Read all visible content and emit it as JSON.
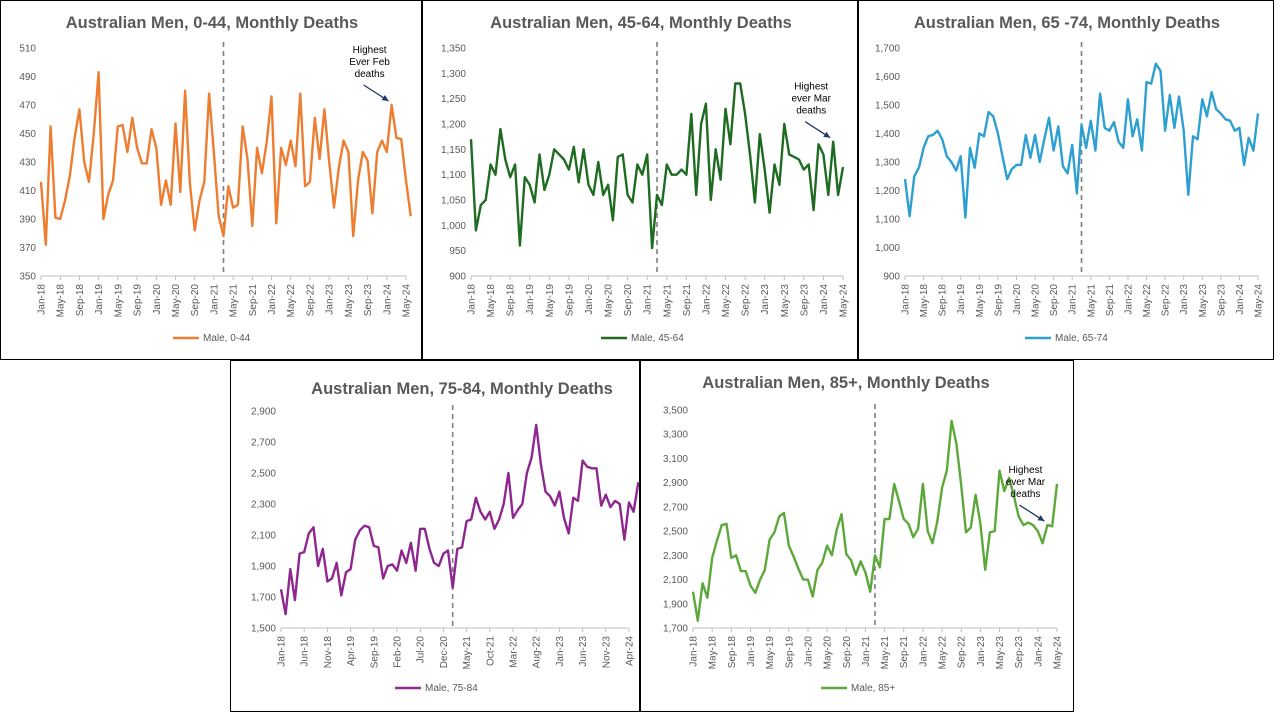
{
  "chart_data": [
    {
      "type": "line",
      "title": "Australian Men, 0-44, Monthly Deaths",
      "ylim": [
        350,
        510
      ],
      "yticks": [
        350,
        370,
        390,
        410,
        430,
        450,
        470,
        490,
        510
      ],
      "ytick_labels": [
        "350",
        "370",
        "390",
        "410",
        "430",
        "450",
        "470",
        "490",
        "510"
      ],
      "xtick_labels": [
        "Jan-18",
        "May-18",
        "Sep-18",
        "Jan-19",
        "May-19",
        "Sep-19",
        "Jan-20",
        "May-20",
        "Sep-20",
        "Jan-21",
        "May-21",
        "Sep-21",
        "Jan-22",
        "May-22",
        "Sep-22",
        "Jan-23",
        "May-23",
        "Sep-23",
        "Jan-24",
        "May-24"
      ],
      "x_start": "Jan-18",
      "x_end": "May-24",
      "divider_at": "Mar-21",
      "grid": false,
      "legend": "bottom",
      "series": [
        {
          "name": "Male, 0-44",
          "color": "#ED7D31",
          "values": [
            416,
            372,
            455,
            391,
            390,
            403,
            420,
            447,
            467,
            430,
            416,
            450,
            493,
            390,
            407,
            417,
            455,
            456,
            437,
            461,
            440,
            429,
            429,
            453,
            440,
            400,
            417,
            400,
            457,
            409,
            480,
            415,
            382,
            403,
            416,
            478,
            436,
            392,
            378,
            413,
            398,
            400,
            455,
            432,
            385,
            440,
            422,
            444,
            476,
            387,
            440,
            428,
            445,
            427,
            478,
            413,
            416,
            461,
            432,
            467,
            430,
            398,
            426,
            445,
            437,
            378,
            417,
            437,
            431,
            394,
            437,
            445,
            437,
            470,
            447,
            446,
            417,
            392
          ]
        }
      ],
      "annotations": [
        {
          "lines": [
            "Highest",
            "Ever Feb",
            "deaths"
          ],
          "at": "Feb-24"
        }
      ]
    },
    {
      "type": "line",
      "title": "Australian Men, 45-64, Monthly Deaths",
      "ylim": [
        900,
        1350
      ],
      "yticks": [
        900,
        950,
        1000,
        1050,
        1100,
        1150,
        1200,
        1250,
        1300,
        1350
      ],
      "ytick_labels": [
        "900",
        "950",
        "1,000",
        "1,050",
        "1,100",
        "1,150",
        "1,200",
        "1,250",
        "1,300",
        "1,350"
      ],
      "xtick_labels": [
        "Jan-18",
        "May-18",
        "Sep-18",
        "Jan-19",
        "May-19",
        "Sep-19",
        "Jan-20",
        "May-20",
        "Sep-20",
        "Jan-21",
        "May-21",
        "Sep-21",
        "Jan-22",
        "May-22",
        "Sep-22",
        "Jan-23",
        "May-23",
        "Sep-23",
        "Jan-24",
        "May-24"
      ],
      "x_start": "Jan-18",
      "x_end": "May-24",
      "divider_at": "Mar-21",
      "grid": false,
      "legend": "bottom",
      "series": [
        {
          "name": "Male, 45-64",
          "color": "#1E6B21",
          "values": [
            1170,
            990,
            1040,
            1050,
            1120,
            1100,
            1190,
            1130,
            1095,
            1120,
            960,
            1095,
            1080,
            1045,
            1140,
            1070,
            1100,
            1150,
            1140,
            1130,
            1110,
            1155,
            1085,
            1150,
            1080,
            1060,
            1125,
            1060,
            1080,
            1010,
            1135,
            1140,
            1060,
            1045,
            1120,
            1100,
            1140,
            955,
            1060,
            1040,
            1120,
            1100,
            1100,
            1110,
            1100,
            1220,
            1060,
            1200,
            1240,
            1050,
            1150,
            1090,
            1230,
            1160,
            1280,
            1280,
            1220,
            1140,
            1045,
            1180,
            1110,
            1025,
            1120,
            1080,
            1200,
            1140,
            1135,
            1130,
            1110,
            1120,
            1030,
            1160,
            1140,
            1060,
            1165,
            1060,
            1115
          ]
        }
      ],
      "annotations": [
        {
          "lines": [
            "Highest",
            "ever Mar",
            "deaths"
          ],
          "at": "Mar-24"
        }
      ]
    },
    {
      "type": "line",
      "title": "Australian Men, 65 -74, Monthly Deaths",
      "ylim": [
        900,
        1700
      ],
      "yticks": [
        900,
        1000,
        1100,
        1200,
        1300,
        1400,
        1500,
        1600,
        1700
      ],
      "ytick_labels": [
        "900",
        "1,000",
        "1,100",
        "1,200",
        "1,300",
        "1,400",
        "1,500",
        "1,600",
        "1,700"
      ],
      "xtick_labels": [
        "Jan-18",
        "May-18",
        "Sep-18",
        "Jan-19",
        "May-19",
        "Sep-19",
        "Jan-20",
        "May-20",
        "Sep-20",
        "Jan-21",
        "May-21",
        "Sep-21",
        "Jan-22",
        "May-22",
        "Sep-22",
        "Jan-23",
        "May-23",
        "Sep-23",
        "Jan-24",
        "May-24"
      ],
      "x_start": "Jan-18",
      "x_end": "May-24",
      "divider_at": "Mar-21",
      "grid": false,
      "legend": "bottom",
      "series": [
        {
          "name": "Male, 65-74",
          "color": "#2E9FD1",
          "values": [
            1240,
            1110,
            1250,
            1280,
            1350,
            1390,
            1395,
            1410,
            1380,
            1320,
            1300,
            1270,
            1320,
            1105,
            1350,
            1280,
            1400,
            1390,
            1475,
            1460,
            1400,
            1320,
            1240,
            1275,
            1290,
            1290,
            1395,
            1315,
            1395,
            1300,
            1380,
            1455,
            1340,
            1425,
            1285,
            1260,
            1360,
            1190,
            1430,
            1350,
            1445,
            1340,
            1540,
            1420,
            1410,
            1440,
            1370,
            1350,
            1520,
            1390,
            1450,
            1340,
            1580,
            1575,
            1645,
            1620,
            1410,
            1535,
            1420,
            1530,
            1410,
            1185,
            1390,
            1380,
            1520,
            1460,
            1545,
            1485,
            1470,
            1450,
            1445,
            1410,
            1420,
            1290,
            1385,
            1340,
            1470
          ]
        }
      ],
      "annotations": []
    },
    {
      "type": "line",
      "title": "Australian Men, 75-84, Monthly Deaths",
      "ylim": [
        1500,
        2900
      ],
      "yticks": [
        1500,
        1700,
        1900,
        2100,
        2300,
        2500,
        2700,
        2900
      ],
      "ytick_labels": [
        "1,500",
        "1,700",
        "1,900",
        "2,100",
        "2,300",
        "2,500",
        "2,700",
        "2,900"
      ],
      "xtick_labels": [
        "Jan-18",
        "Jun-18",
        "Nov-18",
        "Apr-19",
        "Sep-19",
        "Feb-20",
        "Jul-20",
        "Dec-20",
        "May-21",
        "Oct-21",
        "Mar-22",
        "Aug-22",
        "Jan-23",
        "Jun-23",
        "Nov-23",
        "Apr-24"
      ],
      "x_start": "Jan-18",
      "x_end": "Apr-24",
      "divider_at": "Feb-21",
      "grid": false,
      "legend": "bottom",
      "series": [
        {
          "name": "Male, 75-84",
          "color": "#8E278F",
          "values": [
            1750,
            1590,
            1880,
            1680,
            1980,
            1990,
            2110,
            2150,
            1900,
            2010,
            1800,
            1820,
            1920,
            1710,
            1860,
            1880,
            2070,
            2130,
            2160,
            2150,
            2030,
            2020,
            1820,
            1900,
            1910,
            1870,
            2000,
            1920,
            2050,
            1870,
            2140,
            2140,
            2010,
            1920,
            1900,
            1980,
            2000,
            1760,
            2010,
            2020,
            2190,
            2200,
            2340,
            2250,
            2200,
            2250,
            2140,
            2200,
            2300,
            2500,
            2210,
            2260,
            2300,
            2500,
            2600,
            2810,
            2560,
            2380,
            2350,
            2290,
            2380,
            2210,
            2110,
            2340,
            2320,
            2580,
            2540,
            2530,
            2530,
            2290,
            2360,
            2280,
            2320,
            2300,
            2070,
            2310,
            2250,
            2440
          ]
        }
      ],
      "annotations": []
    },
    {
      "type": "line",
      "title": "Australian Men, 85+, Monthly Deaths",
      "ylim": [
        1700,
        3500
      ],
      "yticks": [
        1700,
        1900,
        2100,
        2300,
        2500,
        2700,
        2900,
        3100,
        3300,
        3500
      ],
      "ytick_labels": [
        "1,700",
        "1,900",
        "2,100",
        "2,300",
        "2,500",
        "2,700",
        "2,900",
        "3,100",
        "3,300",
        "3,500"
      ],
      "xtick_labels": [
        "Jan-18",
        "May-18",
        "Sep-18",
        "Jan-19",
        "May-19",
        "Sep-19",
        "Jan-20",
        "May-20",
        "Sep-20",
        "Jan-21",
        "May-21",
        "Sep-21",
        "Jan-22",
        "May-22",
        "Sep-22",
        "Jan-23",
        "May-23",
        "Sep-23",
        "Jan-24",
        "May-24"
      ],
      "x_start": "Jan-18",
      "x_end": "May-24",
      "divider_at": "Mar-21",
      "grid": false,
      "legend": "bottom",
      "series": [
        {
          "name": "Male, 85+",
          "color": "#5CA83A",
          "values": [
            2000,
            1760,
            2070,
            1950,
            2280,
            2420,
            2550,
            2560,
            2280,
            2300,
            2170,
            2170,
            2050,
            1990,
            2100,
            2180,
            2430,
            2490,
            2620,
            2650,
            2380,
            2290,
            2190,
            2100,
            2100,
            1960,
            2180,
            2240,
            2380,
            2300,
            2510,
            2640,
            2310,
            2260,
            2140,
            2250,
            2160,
            2000,
            2300,
            2200,
            2600,
            2600,
            2890,
            2750,
            2600,
            2560,
            2450,
            2520,
            2890,
            2500,
            2400,
            2580,
            2860,
            3000,
            3410,
            3220,
            2880,
            2490,
            2530,
            2800,
            2560,
            2180,
            2490,
            2500,
            3000,
            2830,
            2940,
            2790,
            2620,
            2550,
            2570,
            2550,
            2500,
            2400,
            2550,
            2540,
            2890
          ]
        }
      ],
      "annotations": [
        {
          "lines": [
            "Highest",
            "ever Mar",
            "deaths"
          ],
          "at": "Mar-24"
        }
      ]
    }
  ]
}
